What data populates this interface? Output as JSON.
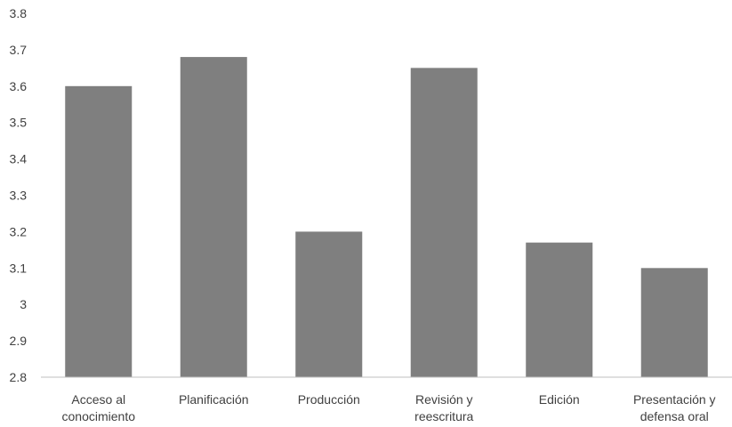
{
  "chart_data": {
    "type": "bar",
    "title": "",
    "xlabel": "",
    "ylabel": "",
    "categories": [
      [
        "Acceso al",
        "conocimiento"
      ],
      [
        "Planificación"
      ],
      [
        "Producción"
      ],
      [
        "Revisión y",
        "reescritura"
      ],
      [
        "Edición"
      ],
      [
        "Presentación y",
        "defensa oral"
      ]
    ],
    "values": [
      3.6,
      3.68,
      3.2,
      3.65,
      3.17,
      3.1
    ],
    "ylim": [
      2.8,
      3.8
    ],
    "yticks": [
      "2.8",
      "2.9",
      "3",
      "3.1",
      "3.2",
      "3.3",
      "3.4",
      "3.5",
      "3.6",
      "3.7",
      "3.8"
    ],
    "grid": false,
    "legend": "none",
    "colors": {
      "bar": "#7f7f7f",
      "axis": "#bfbfbf",
      "text": "#404040"
    }
  }
}
